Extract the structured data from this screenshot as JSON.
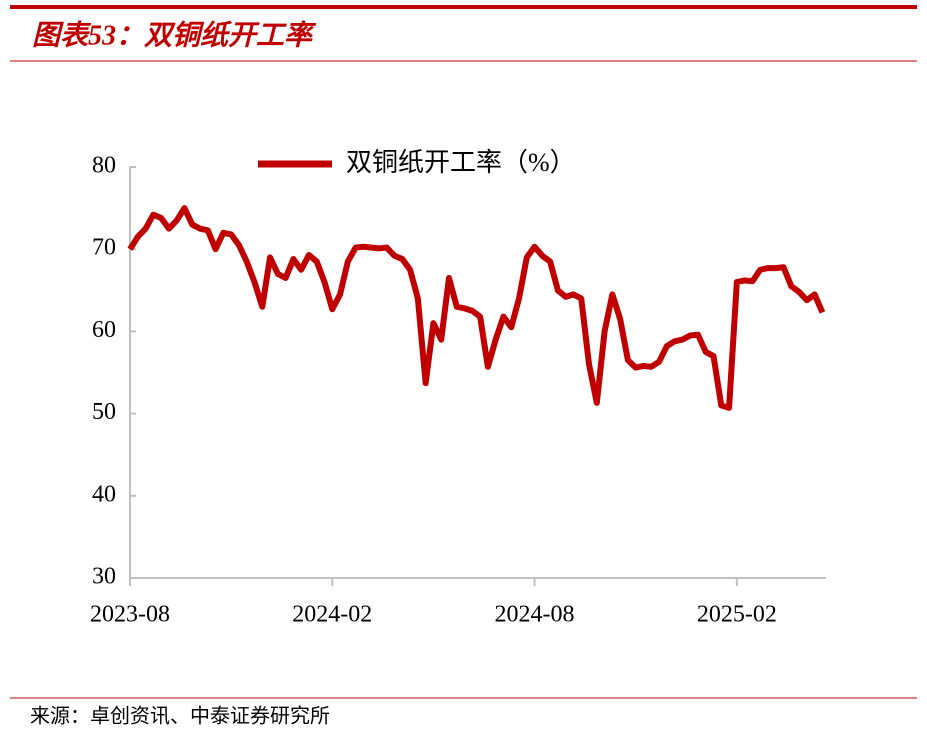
{
  "header": {
    "title": "图表53：双铜纸开工率"
  },
  "chart_data": {
    "type": "line",
    "categories": [
      "2023-08",
      null,
      null,
      null,
      null,
      null,
      null,
      null,
      null,
      null,
      null,
      null,
      null,
      null,
      null,
      null,
      null,
      null,
      null,
      null,
      null,
      null,
      null,
      null,
      null,
      null,
      "2024-02",
      null,
      null,
      null,
      null,
      null,
      null,
      null,
      null,
      null,
      null,
      null,
      null,
      null,
      null,
      null,
      null,
      null,
      null,
      null,
      null,
      null,
      null,
      null,
      null,
      null,
      "2024-08",
      null,
      null,
      null,
      null,
      null,
      null,
      null,
      null,
      null,
      null,
      null,
      null,
      null,
      null,
      null,
      null,
      null,
      null,
      null,
      null,
      null,
      null,
      null,
      null,
      null,
      "2025-02",
      null,
      null,
      null,
      null,
      null,
      null,
      null,
      null,
      null,
      null,
      null
    ],
    "series": [
      {
        "name": "双铜纸开工率（%）",
        "color": "#c00000",
        "values": [
          70,
          71.5,
          72.5,
          74.2,
          73.8,
          72.5,
          73.5,
          75,
          73,
          72.5,
          72.3,
          70,
          72,
          71.8,
          70.5,
          68.5,
          66,
          63,
          69,
          67,
          66.5,
          68.8,
          67.5,
          69.3,
          68.5,
          66,
          62.7,
          64.5,
          68.5,
          70.2,
          70.3,
          70.2,
          70.1,
          70.2,
          69.2,
          68.8,
          67.5,
          64,
          53.7,
          61,
          59,
          66.5,
          63,
          62.8,
          62.5,
          61.8,
          55.7,
          59,
          61.8,
          60.5,
          64,
          69,
          70.3,
          69.2,
          68.5,
          65,
          64.2,
          64.5,
          64,
          56,
          51.3,
          60,
          64.5,
          61.5,
          56.5,
          55.6,
          55.8,
          55.7,
          56.3,
          58.2,
          58.8,
          59,
          59.5,
          59.6,
          57.5,
          57,
          51,
          50.7,
          66,
          66.2,
          66.1,
          67.5,
          67.7,
          67.7,
          67.8,
          65.5,
          64.8,
          63.8,
          64.5,
          62.3
        ]
      }
    ],
    "ylim": [
      30,
      80
    ],
    "yticks": [
      30,
      40,
      50,
      60,
      70,
      80
    ],
    "legend": "top"
  },
  "footer": {
    "source": "来源：卓创资讯、中泰证券研究所"
  }
}
